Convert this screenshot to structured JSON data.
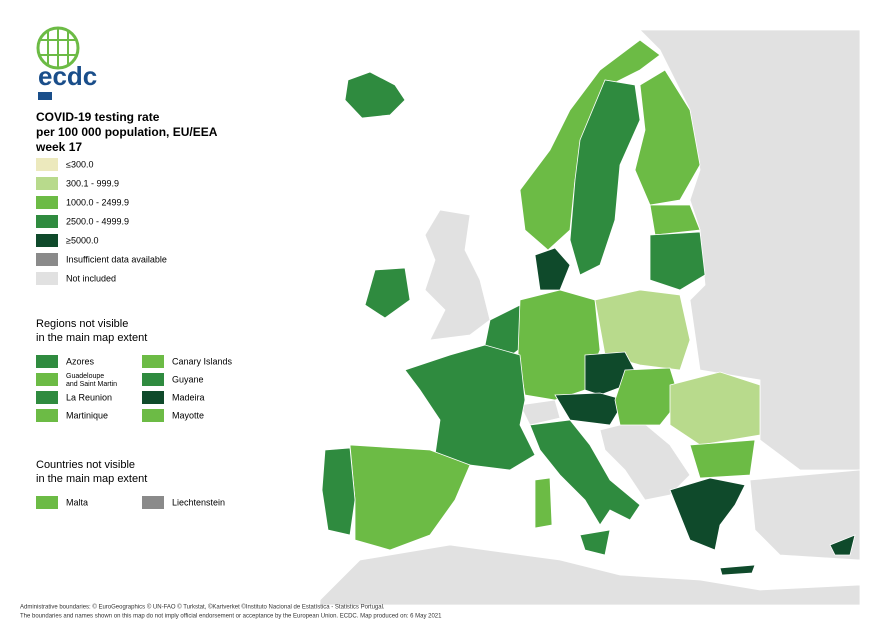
{
  "logo": {
    "text": "ecdc"
  },
  "title": [
    "COVID-19 testing rate",
    "per 100 000 population, EU/EEA",
    "week 17"
  ],
  "legend": {
    "items": [
      {
        "label": "≤300.0",
        "color": "#ece9bd"
      },
      {
        "label": "300.1 - 999.9",
        "color": "#b8da8c"
      },
      {
        "label": "1000.0 - 2499.9",
        "color": "#6cbb45"
      },
      {
        "label": "2500.0 - 4999.9",
        "color": "#2f8b3f"
      },
      {
        "label": "≥5000.0",
        "color": "#0f4a2b"
      },
      {
        "label": "Insufficient data available",
        "color": "#8a8a8a"
      },
      {
        "label": "Not included",
        "color": "#e1e1e1"
      }
    ]
  },
  "regions": {
    "title": [
      "Regions not visible",
      "in the main map extent"
    ],
    "items": [
      {
        "label": "Azores",
        "color": "#2f8b3f"
      },
      {
        "label": "Canary Islands",
        "color": "#6cbb45"
      },
      {
        "label": [
          "Guadeloupe",
          "and Saint Martin"
        ],
        "color": "#6cbb45"
      },
      {
        "label": "Guyane",
        "color": "#2f8b3f"
      },
      {
        "label": "La Reunion",
        "color": "#2f8b3f"
      },
      {
        "label": "Madeira",
        "color": "#0f4a2b"
      },
      {
        "label": "Martinique",
        "color": "#6cbb45"
      },
      {
        "label": "Mayotte",
        "color": "#6cbb45"
      }
    ]
  },
  "countries": {
    "title": [
      "Countries not visible",
      "in the main map extent"
    ],
    "items": [
      {
        "label": "Malta",
        "color": "#6cbb45"
      },
      {
        "label": "Liechtenstein",
        "color": "#8a8a8a"
      }
    ]
  },
  "footer": [
    "Administrative boundaries: © EuroGeographics © UN-FAO © Turkstat, ©Kartverket ©Instituto Nacional de Estatística - Statistics Portugal.",
    "The boundaries and names shown on this map do not imply official endorsement or acceptance by the European Union. ECDC. Map produced on: 6 May 2021"
  ]
}
